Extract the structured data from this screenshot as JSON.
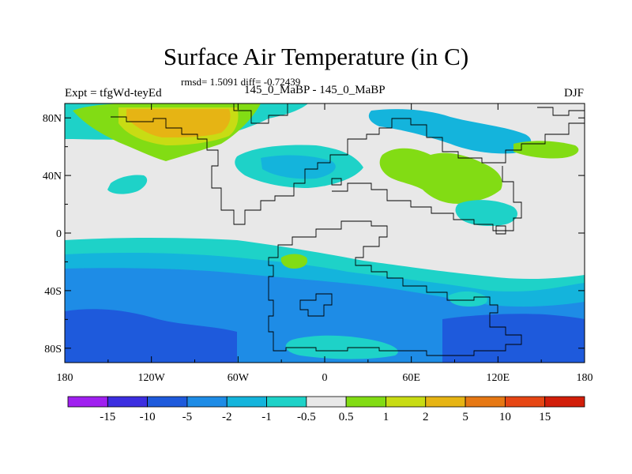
{
  "title": "Surface Air Temperature (in C)",
  "stats": "rmsd= 1.5091 diff= -0.72439",
  "left_label": "Expt = tfgWd-teyEd",
  "subtitle": "145_0_MaBP - 145_0_MaBP",
  "right_label": "DJF",
  "map": {
    "lon_range": [
      -180,
      180
    ],
    "lat_range": [
      -90,
      90
    ],
    "lon_ticks": [
      {
        "v": -180,
        "label": "180"
      },
      {
        "v": -120,
        "label": "120W"
      },
      {
        "v": -60,
        "label": "60W"
      },
      {
        "v": 0,
        "label": "0"
      },
      {
        "v": 60,
        "label": "60E"
      },
      {
        "v": 120,
        "label": "120E"
      },
      {
        "v": 180,
        "label": "180"
      }
    ],
    "lat_ticks": [
      {
        "v": 80,
        "label": "80N"
      },
      {
        "v": 40,
        "label": "40N"
      },
      {
        "v": 0,
        "label": "0"
      },
      {
        "v": -40,
        "label": "40S"
      },
      {
        "v": -80,
        "label": "80S"
      }
    ],
    "background_color": "#e8e8e8"
  },
  "colorbar": {
    "levels": [
      "-15",
      "-10",
      "-5",
      "-2",
      "-1",
      "-0.5",
      "0.5",
      "1",
      "2",
      "5",
      "10",
      "15"
    ],
    "colors": [
      "#a020f0",
      "#3c2ee0",
      "#1e5adc",
      "#1e8ce6",
      "#14b4dc",
      "#1ed2c8",
      "#e8e8e8",
      "#82dc14",
      "#c8dc14",
      "#e6b414",
      "#e67814",
      "#e64614",
      "#d21e0a"
    ]
  }
}
